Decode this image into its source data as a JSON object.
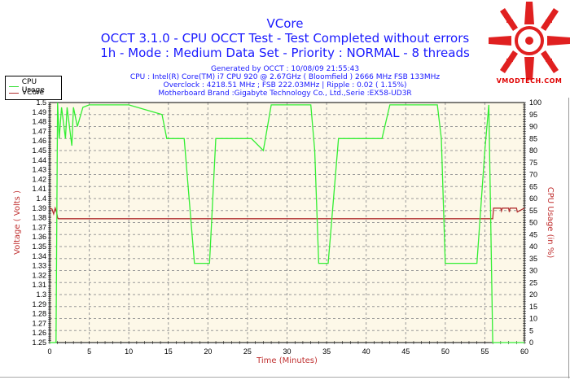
{
  "header": {
    "title": "VCore",
    "subtitle1": "OCCT 3.1.0 - CPU OCCT Test - Test Completed without errors",
    "subtitle2": "1h - Mode : Medium Data Set - Priority : NORMAL - 8 threads",
    "generated": "Generated by OCCT : 10/08/09 21:55:43",
    "cpu": "CPU : Intel(R) Core(TM) i7 CPU 920 @ 2.67GHz ( Bloomfield ) 2666 MHz FSB 133MHz",
    "overclock": "Overclock : 4218.51 MHz ; FSB 222.03MHz | Ripple : 0.02 ( 1.15%)",
    "motherboard": "Motherboard Brand :Gigabyte Technology Co., Ltd.,Serie :EX58-UD3R"
  },
  "legend": {
    "items": [
      {
        "label": "CPU Usage",
        "color": "#33dd33"
      },
      {
        "label": "VCore",
        "color": "#b03030"
      }
    ]
  },
  "logo": {
    "text": "VMODTECH.COM",
    "color": "#e00000"
  },
  "colors": {
    "plot_bg": "#fdf8e8",
    "cpu_line": "#33ee33",
    "vcore_line": "#b03030",
    "title": "#1a1aff",
    "axis_label": "#c03030"
  },
  "chart_data": {
    "type": "line",
    "title": "VCore",
    "xlabel": "Time (Minutes)",
    "ylabel": "Voltage ( Volts )",
    "y2label": "CPU Usage (in %)",
    "xlim": [
      0,
      60
    ],
    "ylim": [
      1.25,
      1.5
    ],
    "y2lim": [
      0,
      100
    ],
    "x_ticks": [
      0,
      5,
      10,
      15,
      20,
      25,
      30,
      35,
      40,
      45,
      50,
      55,
      60
    ],
    "y_ticks": [
      "1.5",
      "1.49",
      "1.48",
      "1.47",
      "1.46",
      "1.45",
      "1.44",
      "1.43",
      "1.42",
      "1.41",
      "1.4",
      "1.39",
      "1.38",
      "1.37",
      "1.36",
      "1.35",
      "1.34",
      "1.33",
      "1.32",
      "1.31",
      "1.3",
      "1.29",
      "1.28",
      "1.27",
      "1.26",
      "1.25"
    ],
    "y2_ticks": [
      "100",
      "95",
      "90",
      "85",
      "80",
      "75",
      "70",
      "65",
      "60",
      "55",
      "50",
      "45",
      "40",
      "35",
      "30",
      "25",
      "20",
      "15",
      "10",
      "5",
      "0"
    ],
    "grid": true,
    "legend_position": "top-left outside",
    "series": [
      {
        "name": "VCore",
        "axis": "left",
        "x": [
          0,
          0.3,
          0.5,
          0.7,
          0.9,
          1.0,
          1.1,
          56.0,
          56.1,
          57.0,
          57.1,
          57.2,
          58.0,
          58.1,
          58.2,
          59.0,
          59.1,
          60
        ],
        "values": [
          1.39,
          1.389,
          1.384,
          1.39,
          1.385,
          1.38,
          1.379,
          1.379,
          1.39,
          1.39,
          1.387,
          1.39,
          1.39,
          1.386,
          1.39,
          1.39,
          1.386,
          1.39
        ]
      },
      {
        "name": "CPU Usage",
        "axis": "right",
        "x": [
          0,
          0.8,
          1.0,
          1.2,
          1.5,
          2.0,
          2.2,
          2.8,
          3.0,
          3.5,
          4.2,
          5.0,
          10,
          14.2,
          14.8,
          15.5,
          16.0,
          17.0,
          18.3,
          18.6,
          19.0,
          19.5,
          20.2,
          21.0,
          21.4,
          22.5,
          24.0,
          25.5,
          27.0,
          28.0,
          33.0,
          33.5,
          34.0,
          34.6,
          35.2,
          36.5,
          37.5,
          38.5,
          40.0,
          41.0,
          42.0,
          43.0,
          49.0,
          49.5,
          50.0,
          51.0,
          52.0,
          53.0,
          54.0,
          55.0,
          55.5,
          56.0,
          56.2,
          60
        ],
        "values": [
          0,
          0,
          100,
          85,
          98,
          85,
          98,
          82,
          98,
          90,
          98,
          99,
          99,
          95,
          85,
          85,
          85,
          85,
          33,
          33,
          33,
          33,
          33,
          85,
          85,
          85,
          85,
          85,
          80,
          99,
          99,
          80,
          33,
          33,
          33,
          85,
          85,
          85,
          85,
          85,
          85,
          99,
          99,
          85,
          33,
          33,
          33,
          33,
          33,
          80,
          99,
          0,
          0,
          0
        ]
      }
    ]
  }
}
